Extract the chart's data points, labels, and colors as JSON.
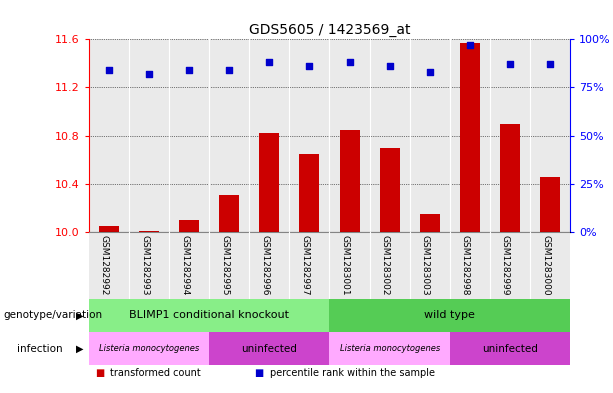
{
  "title": "GDS5605 / 1423569_at",
  "samples": [
    "GSM1282992",
    "GSM1282993",
    "GSM1282994",
    "GSM1282995",
    "GSM1282996",
    "GSM1282997",
    "GSM1283001",
    "GSM1283002",
    "GSM1283003",
    "GSM1282998",
    "GSM1282999",
    "GSM1283000"
  ],
  "bar_values": [
    10.05,
    10.01,
    10.1,
    10.31,
    10.82,
    10.65,
    10.85,
    10.7,
    10.15,
    11.57,
    10.9,
    10.46
  ],
  "bar_baseline": 10.0,
  "percentile_values": [
    84,
    82,
    84,
    84,
    88,
    86,
    88,
    86,
    83,
    97,
    87,
    87
  ],
  "ylim_left": [
    10.0,
    11.6
  ],
  "ylim_right": [
    0,
    100
  ],
  "yticks_left": [
    10.0,
    10.4,
    10.8,
    11.2,
    11.6
  ],
  "yticks_right": [
    0,
    25,
    50,
    75,
    100
  ],
  "bar_color": "#cc0000",
  "dot_color": "#0000cc",
  "genotype_groups": [
    {
      "label": "BLIMP1 conditional knockout",
      "start": 0,
      "end": 6,
      "color": "#88ee88"
    },
    {
      "label": "wild type",
      "start": 6,
      "end": 12,
      "color": "#55cc55"
    }
  ],
  "infection_groups": [
    {
      "label": "Listeria monocytogenes",
      "start": 0,
      "end": 3,
      "color": "#ffaaff"
    },
    {
      "label": "uninfected",
      "start": 3,
      "end": 6,
      "color": "#cc44cc"
    },
    {
      "label": "Listeria monocytogenes",
      "start": 6,
      "end": 9,
      "color": "#ffaaff"
    },
    {
      "label": "uninfected",
      "start": 9,
      "end": 12,
      "color": "#cc44cc"
    }
  ],
  "genotype_label": "genotype/variation",
  "infection_label": "infection",
  "legend_bar_label": "transformed count",
  "legend_dot_label": "percentile rank within the sample"
}
